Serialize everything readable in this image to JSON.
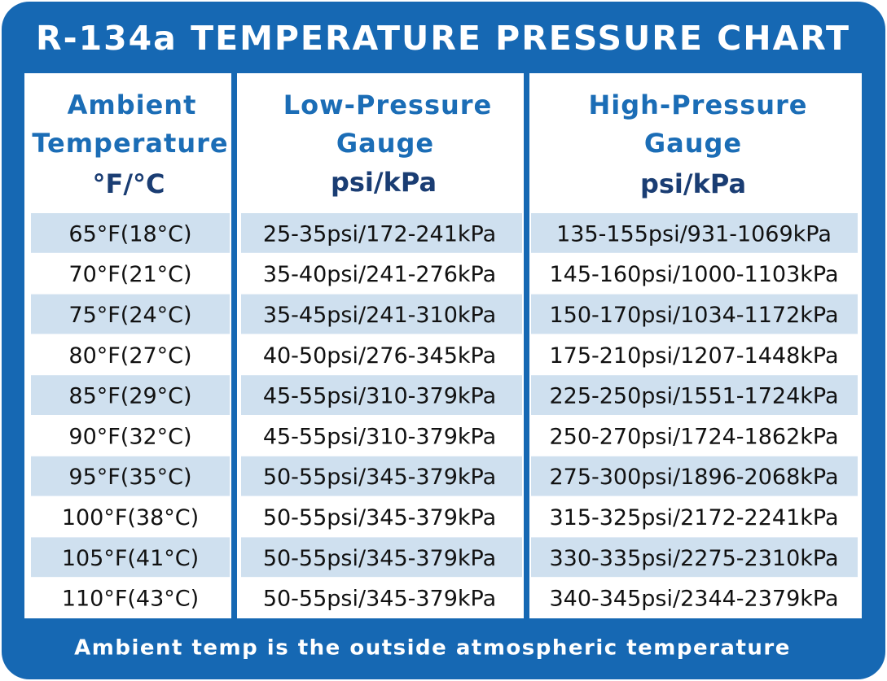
{
  "header": {
    "title": "R-134a TEMPERATURE PRESSURE CHART"
  },
  "table": {
    "columns": [
      [
        "Ambient",
        "Temperature",
        "°F/°C"
      ],
      [
        "Low-Pressure",
        "Gauge",
        "psi/kPa"
      ],
      [
        "High-Pressure",
        "Gauge",
        "psi/kPa"
      ]
    ],
    "rows": [
      [
        "65°F(18°C)",
        "25-35psi/172-241kPa",
        "135-155psi/931-1069kPa"
      ],
      [
        "70°F(21°C)",
        "35-40psi/241-276kPa",
        "145-160psi/1000-1103kPa"
      ],
      [
        "75°F(24°C)",
        "35-45psi/241-310kPa",
        "150-170psi/1034-1172kPa"
      ],
      [
        "80°F(27°C)",
        "40-50psi/276-345kPa",
        "175-210psi/1207-1448kPa"
      ],
      [
        "85°F(29°C)",
        "45-55psi/310-379kPa",
        "225-250psi/1551-1724kPa"
      ],
      [
        "90°F(32°C)",
        "45-55psi/310-379kPa",
        "250-270psi/1724-1862kPa"
      ],
      [
        "95°F(35°C)",
        "50-55psi/345-379kPa",
        "275-300psi/1896-2068kPa"
      ],
      [
        "100°F(38°C)",
        "50-55psi/345-379kPa",
        "315-325psi/2172-2241kPa"
      ],
      [
        "105°F(41°C)",
        "50-55psi/345-379kPa",
        "330-335psi/2275-2310kPa"
      ],
      [
        "110°F(43°C)",
        "50-55psi/345-379kPa",
        "340-345psi/2344-2379kPa"
      ]
    ]
  },
  "footer": "Ambient temp is the outside atmospheric temperature"
}
